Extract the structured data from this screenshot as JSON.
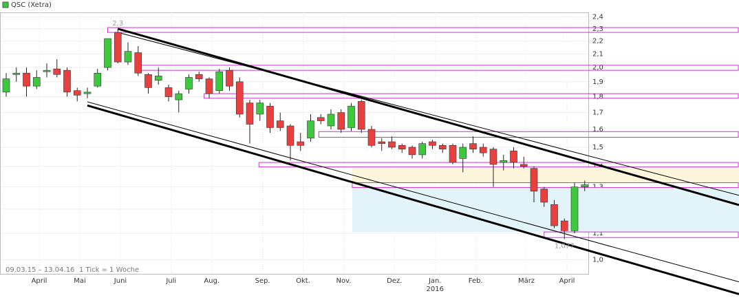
{
  "chart_data": {
    "type": "candlestick",
    "title": "QSC (Xetra)",
    "color": "#33cc33",
    "range_label": "09.03.15 – 13.04.16",
    "tick_note": "1 Tick = 1 Woche",
    "year_label": "2016",
    "log_scale": true,
    "grid": true,
    "up_color": "#3ec83e",
    "down_color": "#e8403f",
    "categories": [
      null,
      null,
      null,
      null,
      "April",
      null,
      null,
      null,
      "Mai",
      null,
      null,
      null,
      "Juni",
      null,
      null,
      null,
      null,
      "Juli",
      null,
      null,
      null,
      "Aug.",
      null,
      null,
      null,
      null,
      "Sep.",
      null,
      null,
      null,
      "Okt.",
      null,
      null,
      null,
      "Nov.",
      null,
      null,
      null,
      null,
      "Dez.",
      null,
      null,
      null,
      "Jan.",
      null,
      null,
      null,
      "Feb.",
      null,
      null,
      null,
      null,
      "März",
      null,
      null,
      null,
      "April",
      null
    ],
    "open": [
      1.83,
      1.95,
      1.96,
      1.87,
      1.97,
      1.99,
      1.98,
      1.84,
      1.82,
      1.87,
      2.0,
      2.27,
      2.04,
      2.11,
      1.95,
      1.91,
      1.86,
      1.78,
      1.85,
      1.95,
      1.92,
      1.84,
      1.98,
      1.9,
      1.76,
      1.69,
      1.74,
      1.65,
      1.62,
      1.53,
      1.55,
      1.67,
      1.62,
      1.7,
      1.61,
      1.77,
      1.6,
      1.53,
      1.53,
      1.51,
      1.5,
      1.46,
      1.53,
      1.51,
      1.51,
      1.44,
      1.52,
      1.5,
      1.49,
      1.42,
      1.48,
      1.41,
      1.39,
      1.29,
      1.22,
      1.15,
      1.11,
      1.3
    ],
    "high": [
      1.96,
      2.0,
      2.0,
      1.98,
      2.03,
      2.06,
      2.0,
      1.86,
      1.86,
      1.99,
      2.22,
      2.3,
      2.19,
      2.16,
      1.96,
      2.0,
      1.88,
      1.84,
      1.95,
      1.97,
      1.93,
      1.99,
      2.0,
      1.93,
      1.78,
      1.78,
      1.76,
      1.7,
      1.63,
      1.58,
      1.69,
      1.69,
      1.72,
      1.72,
      1.76,
      1.78,
      1.62,
      1.55,
      1.56,
      1.52,
      1.51,
      1.53,
      1.54,
      1.52,
      1.52,
      1.52,
      1.56,
      1.52,
      1.5,
      1.46,
      1.5,
      1.45,
      1.4,
      1.3,
      1.24,
      1.16,
      1.32,
      1.33
    ],
    "low": [
      1.8,
      1.9,
      1.8,
      1.85,
      1.93,
      1.93,
      1.8,
      1.77,
      1.79,
      1.86,
      1.98,
      2.03,
      2.02,
      1.94,
      1.82,
      1.88,
      1.77,
      1.7,
      1.82,
      1.9,
      1.79,
      1.82,
      1.84,
      1.67,
      1.52,
      1.65,
      1.58,
      1.59,
      1.43,
      1.48,
      1.53,
      1.63,
      1.6,
      1.58,
      1.59,
      1.58,
      1.5,
      1.48,
      1.49,
      1.47,
      1.44,
      1.44,
      1.49,
      1.47,
      1.41,
      1.37,
      1.47,
      1.45,
      1.3,
      1.38,
      1.39,
      1.39,
      1.23,
      1.21,
      1.12,
      1.077,
      1.1,
      1.28
    ],
    "close": [
      1.92,
      1.96,
      1.87,
      1.93,
      1.98,
      1.95,
      1.83,
      1.81,
      1.83,
      1.96,
      2.22,
      2.04,
      2.12,
      1.96,
      1.86,
      1.94,
      1.8,
      1.82,
      1.93,
      1.92,
      1.82,
      1.97,
      1.87,
      1.69,
      1.63,
      1.76,
      1.61,
      1.61,
      1.51,
      1.51,
      1.65,
      1.65,
      1.69,
      1.6,
      1.74,
      1.6,
      1.51,
      1.52,
      1.5,
      1.49,
      1.46,
      1.52,
      1.51,
      1.49,
      1.42,
      1.5,
      1.49,
      1.47,
      1.41,
      1.43,
      1.42,
      1.4,
      1.28,
      1.23,
      1.13,
      1.11,
      1.3,
      1.31
    ],
    "ylim": [
      0.95,
      2.44
    ],
    "yticks": [
      {
        "value": 1.0,
        "label": "1,0"
      },
      {
        "value": 1.1,
        "label": "1,1"
      },
      {
        "value": 1.2,
        "label": "1,2"
      },
      {
        "value": 1.3,
        "label": "1,3"
      },
      {
        "value": 1.4,
        "label": "1,4"
      },
      {
        "value": 1.5,
        "label": "1,5"
      },
      {
        "value": 1.6,
        "label": "1,6"
      },
      {
        "value": 1.7,
        "label": "1,7"
      },
      {
        "value": 1.8,
        "label": "1,8"
      },
      {
        "value": 1.9,
        "label": "1,9"
      },
      {
        "value": 2.0,
        "label": "2,0"
      },
      {
        "value": 2.1,
        "label": "2,1"
      },
      {
        "value": 2.2,
        "label": "2,2"
      },
      {
        "value": 2.3,
        "label": "2,3"
      },
      {
        "value": 2.4,
        "label": "2,4"
      }
    ],
    "annotations": [
      {
        "index": 11,
        "value": 2.3,
        "label": "2,3"
      },
      {
        "index": 55,
        "value": 1.077,
        "label": "1,077"
      }
    ],
    "zones": [
      {
        "from": 10,
        "high": 2.31,
        "low": 2.27
      },
      {
        "from": 12.7,
        "high": 2.016,
        "low": 1.98
      },
      {
        "from": 19.5,
        "high": 1.82,
        "low": 1.79
      },
      {
        "from": 30.8,
        "high": 1.587,
        "low": 1.555
      },
      {
        "from": 24.9,
        "high": 1.42,
        "low": 1.397
      },
      {
        "from": 34.1,
        "high": 1.32,
        "low": 1.297
      },
      {
        "from": 53,
        "high": 1.105,
        "low": 1.083
      }
    ],
    "trendlines": [
      {
        "x": [
          11,
          72.2
        ],
        "y": [
          2.3,
          1.218
        ],
        "width": 3
      },
      {
        "x": [
          11,
          72.2
        ],
        "y": [
          2.27,
          1.261
        ],
        "width": 1
      },
      {
        "x": [
          8,
          72.2
        ],
        "y": [
          1.767,
          0.923
        ],
        "width": 1
      },
      {
        "x": [
          8,
          72.2
        ],
        "y": [
          1.744,
          0.883
        ],
        "width": 3
      }
    ]
  }
}
